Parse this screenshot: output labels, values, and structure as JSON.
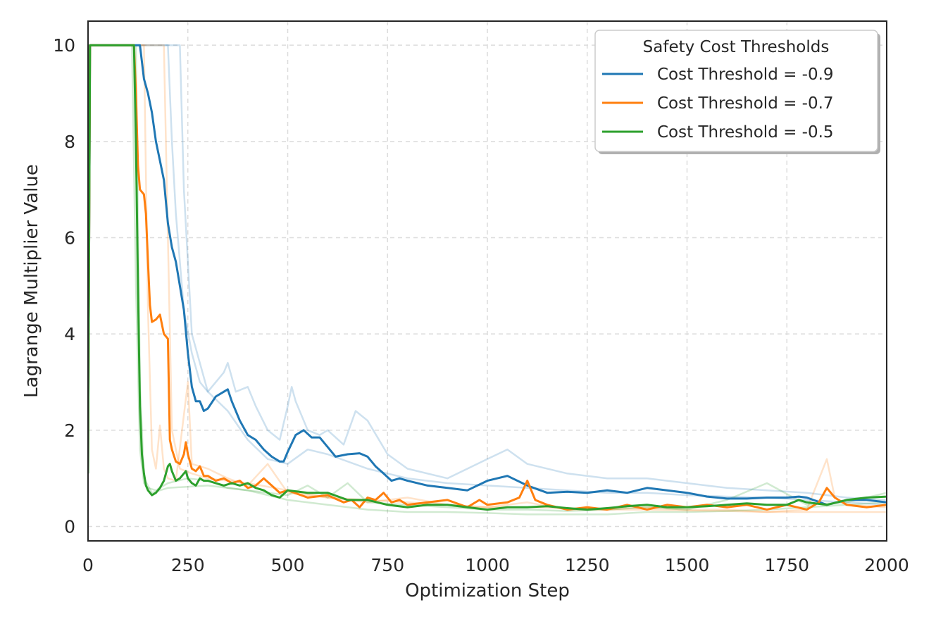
{
  "chart_data": {
    "type": "line",
    "xlabel": "Optimization Step",
    "ylabel": "Lagrange Multiplier Value",
    "xlim": [
      0,
      2000
    ],
    "ylim": [
      -0.3,
      10.5
    ],
    "xticks": [
      0,
      250,
      500,
      750,
      1000,
      1250,
      1500,
      1750,
      2000
    ],
    "yticks": [
      0,
      2,
      4,
      6,
      8,
      10
    ],
    "grid": true,
    "legend": {
      "title": "Safety Cost Thresholds",
      "placement": "top-right"
    },
    "series": [
      {
        "name": "Cost Threshold = -0.9",
        "color": "#1f77b4",
        "x": [
          0,
          5,
          10,
          130,
          140,
          150,
          160,
          170,
          180,
          190,
          200,
          210,
          220,
          230,
          240,
          250,
          260,
          270,
          280,
          290,
          300,
          320,
          340,
          350,
          360,
          380,
          400,
          420,
          440,
          460,
          480,
          490,
          500,
          520,
          540,
          560,
          580,
          600,
          620,
          650,
          680,
          700,
          720,
          740,
          760,
          780,
          800,
          850,
          900,
          950,
          1000,
          1050,
          1100,
          1150,
          1200,
          1250,
          1300,
          1350,
          1400,
          1450,
          1500,
          1550,
          1600,
          1650,
          1700,
          1750,
          1780,
          1800,
          1850,
          1900,
          1950,
          2000
        ],
        "y": [
          1.1,
          10,
          10,
          10,
          9.3,
          9.0,
          8.6,
          8.0,
          7.6,
          7.2,
          6.3,
          5.8,
          5.5,
          5.0,
          4.5,
          3.6,
          2.9,
          2.6,
          2.6,
          2.4,
          2.45,
          2.7,
          2.8,
          2.85,
          2.6,
          2.2,
          1.9,
          1.8,
          1.6,
          1.45,
          1.35,
          1.35,
          1.55,
          1.9,
          2.0,
          1.85,
          1.85,
          1.65,
          1.45,
          1.5,
          1.52,
          1.45,
          1.25,
          1.1,
          0.95,
          1.0,
          0.95,
          0.85,
          0.8,
          0.75,
          0.95,
          1.05,
          0.85,
          0.7,
          0.72,
          0.7,
          0.75,
          0.7,
          0.8,
          0.75,
          0.7,
          0.62,
          0.58,
          0.58,
          0.6,
          0.6,
          0.62,
          0.6,
          0.45,
          0.55,
          0.55,
          0.5
        ]
      },
      {
        "name": "Cost Threshold = -0.7",
        "color": "#ff7f0e",
        "x": [
          0,
          5,
          10,
          115,
          120,
          125,
          130,
          140,
          145,
          150,
          155,
          160,
          170,
          180,
          190,
          200,
          205,
          210,
          220,
          230,
          240,
          245,
          250,
          260,
          270,
          280,
          290,
          300,
          320,
          340,
          360,
          380,
          400,
          420,
          440,
          460,
          480,
          500,
          550,
          600,
          640,
          660,
          680,
          700,
          720,
          740,
          760,
          780,
          800,
          850,
          900,
          950,
          980,
          1000,
          1050,
          1080,
          1100,
          1120,
          1150,
          1200,
          1250,
          1300,
          1350,
          1400,
          1450,
          1500,
          1550,
          1600,
          1650,
          1700,
          1750,
          1800,
          1830,
          1850,
          1870,
          1900,
          1950,
          2000
        ],
        "y": [
          1.1,
          10,
          10,
          10,
          9.0,
          7.5,
          7.0,
          6.9,
          6.5,
          5.5,
          4.6,
          4.25,
          4.3,
          4.4,
          4.0,
          3.9,
          1.8,
          1.6,
          1.35,
          1.3,
          1.5,
          1.75,
          1.5,
          1.2,
          1.15,
          1.25,
          1.05,
          1.05,
          0.95,
          1.0,
          0.9,
          0.95,
          0.8,
          0.85,
          1.0,
          0.85,
          0.7,
          0.75,
          0.6,
          0.65,
          0.5,
          0.55,
          0.4,
          0.6,
          0.55,
          0.7,
          0.5,
          0.55,
          0.45,
          0.5,
          0.55,
          0.4,
          0.55,
          0.45,
          0.5,
          0.6,
          0.95,
          0.55,
          0.45,
          0.35,
          0.4,
          0.35,
          0.45,
          0.35,
          0.45,
          0.4,
          0.45,
          0.4,
          0.45,
          0.35,
          0.45,
          0.35,
          0.5,
          0.8,
          0.6,
          0.45,
          0.4,
          0.45
        ]
      },
      {
        "name": "Cost Threshold = -0.5",
        "color": "#2ca02c",
        "x": [
          0,
          5,
          10,
          115,
          120,
          125,
          130,
          135,
          140,
          145,
          150,
          160,
          170,
          180,
          190,
          200,
          205,
          210,
          220,
          230,
          240,
          245,
          250,
          260,
          270,
          280,
          290,
          300,
          320,
          340,
          360,
          380,
          400,
          420,
          440,
          460,
          480,
          500,
          550,
          600,
          650,
          700,
          750,
          800,
          850,
          900,
          950,
          1000,
          1050,
          1100,
          1150,
          1200,
          1250,
          1300,
          1350,
          1400,
          1450,
          1500,
          1550,
          1600,
          1650,
          1700,
          1750,
          1780,
          1800,
          1850,
          1900,
          1950,
          2000
        ],
        "y": [
          1.1,
          10,
          10,
          10,
          8.0,
          5.0,
          2.5,
          1.5,
          1.1,
          0.85,
          0.75,
          0.65,
          0.7,
          0.8,
          0.95,
          1.25,
          1.3,
          1.15,
          0.95,
          1.0,
          1.1,
          1.15,
          1.0,
          0.9,
          0.85,
          1.0,
          0.95,
          0.95,
          0.9,
          0.85,
          0.9,
          0.85,
          0.9,
          0.8,
          0.75,
          0.65,
          0.6,
          0.75,
          0.7,
          0.7,
          0.55,
          0.55,
          0.45,
          0.4,
          0.45,
          0.45,
          0.4,
          0.35,
          0.4,
          0.4,
          0.42,
          0.38,
          0.35,
          0.38,
          0.42,
          0.45,
          0.4,
          0.4,
          0.42,
          0.45,
          0.48,
          0.45,
          0.45,
          0.55,
          0.5,
          0.45,
          0.55,
          0.6,
          0.62
        ]
      }
    ],
    "individual_runs": [
      {
        "color": "#1f77b4",
        "x": [
          0,
          5,
          10,
          200,
          210,
          220,
          240,
          260,
          280,
          300,
          340,
          350,
          370,
          400,
          420,
          450,
          480,
          500,
          510,
          520,
          550,
          580,
          600,
          640,
          670,
          700,
          750,
          800,
          900,
          1000,
          1050,
          1100,
          1200,
          1300,
          1400,
          1500,
          1600,
          1700,
          1800,
          1900,
          2000
        ],
        "y": [
          1.1,
          10,
          10,
          10,
          8.0,
          6.5,
          4.5,
          3.6,
          3.0,
          2.8,
          3.2,
          3.4,
          2.8,
          2.9,
          2.5,
          2.0,
          1.8,
          2.5,
          2.9,
          2.6,
          2.0,
          1.9,
          2.0,
          1.7,
          2.4,
          2.2,
          1.5,
          1.2,
          1.0,
          1.4,
          1.6,
          1.3,
          1.1,
          1.0,
          1.0,
          0.9,
          0.8,
          0.75,
          0.7,
          0.6,
          0.55
        ]
      },
      {
        "color": "#1f77b4",
        "x": [
          0,
          5,
          10,
          230,
          240,
          260,
          300,
          350,
          400,
          450,
          500,
          550,
          600,
          700,
          800,
          900,
          1000,
          1100,
          1200,
          1300,
          1400,
          1500,
          1600,
          1700,
          1800,
          1900,
          2000
        ],
        "y": [
          1.1,
          10,
          10,
          10,
          7.0,
          4.0,
          2.8,
          2.4,
          1.8,
          1.4,
          1.3,
          1.6,
          1.5,
          1.2,
          1.0,
          0.9,
          0.85,
          0.8,
          0.75,
          0.7,
          0.7,
          0.65,
          0.62,
          0.6,
          0.55,
          0.5,
          0.45
        ]
      },
      {
        "color": "#ff7f0e",
        "x": [
          0,
          5,
          10,
          140,
          150,
          160,
          170,
          180,
          190,
          200,
          220,
          250,
          260,
          300,
          350,
          400,
          450,
          500,
          600,
          700,
          800,
          900,
          1000,
          1100,
          1200,
          1300,
          1400,
          1500,
          1600,
          1700,
          1800,
          1850,
          1870,
          1900,
          2000
        ],
        "y": [
          1.1,
          10,
          10,
          10,
          4.5,
          1.6,
          1.2,
          2.1,
          1.2,
          1.0,
          0.95,
          3.0,
          1.3,
          1.2,
          1.0,
          0.85,
          1.3,
          0.7,
          0.6,
          0.5,
          0.6,
          0.45,
          0.4,
          0.5,
          0.35,
          0.35,
          0.4,
          0.35,
          0.35,
          0.3,
          0.35,
          1.4,
          0.6,
          0.45,
          0.4
        ]
      },
      {
        "color": "#ff7f0e",
        "x": [
          0,
          5,
          10,
          190,
          200,
          210,
          230,
          260,
          300,
          400,
          500,
          600,
          700,
          800,
          900,
          1000,
          1100,
          1200,
          1300,
          1400,
          1500,
          1600,
          1700,
          1800,
          1900,
          2000
        ],
        "y": [
          1.1,
          10,
          10,
          10,
          6.0,
          2.0,
          1.2,
          1.1,
          1.0,
          0.9,
          0.75,
          0.6,
          0.55,
          0.5,
          0.45,
          0.4,
          0.4,
          0.38,
          0.35,
          0.35,
          0.33,
          0.32,
          0.3,
          0.3,
          0.3,
          0.3
        ]
      },
      {
        "color": "#2ca02c",
        "x": [
          0,
          5,
          10,
          110,
          120,
          130,
          140,
          150,
          170,
          200,
          250,
          300,
          350,
          400,
          450,
          500,
          550,
          600,
          650,
          700,
          800,
          900,
          1000,
          1100,
          1200,
          1300,
          1400,
          1500,
          1600,
          1700,
          1800,
          1900,
          2000
        ],
        "y": [
          1.1,
          10,
          10,
          10,
          5.0,
          1.6,
          0.9,
          0.8,
          0.75,
          0.9,
          1.0,
          0.95,
          0.8,
          0.75,
          0.7,
          0.65,
          0.85,
          0.6,
          0.9,
          0.5,
          0.45,
          0.4,
          0.35,
          0.35,
          0.32,
          0.35,
          0.4,
          0.35,
          0.55,
          0.9,
          0.45,
          0.5,
          0.7
        ]
      },
      {
        "color": "#2ca02c",
        "x": [
          0,
          5,
          10,
          120,
          130,
          140,
          160,
          200,
          300,
          400,
          500,
          600,
          700,
          800,
          900,
          1000,
          1100,
          1200,
          1300,
          1400,
          1500,
          1600,
          1700,
          1800,
          1900,
          2000
        ],
        "y": [
          1.1,
          10,
          10,
          10,
          3.0,
          1.0,
          0.7,
          0.8,
          0.85,
          0.75,
          0.55,
          0.45,
          0.35,
          0.3,
          0.3,
          0.28,
          0.25,
          0.25,
          0.25,
          0.3,
          0.3,
          0.32,
          0.35,
          0.4,
          0.45,
          0.5
        ]
      }
    ]
  }
}
